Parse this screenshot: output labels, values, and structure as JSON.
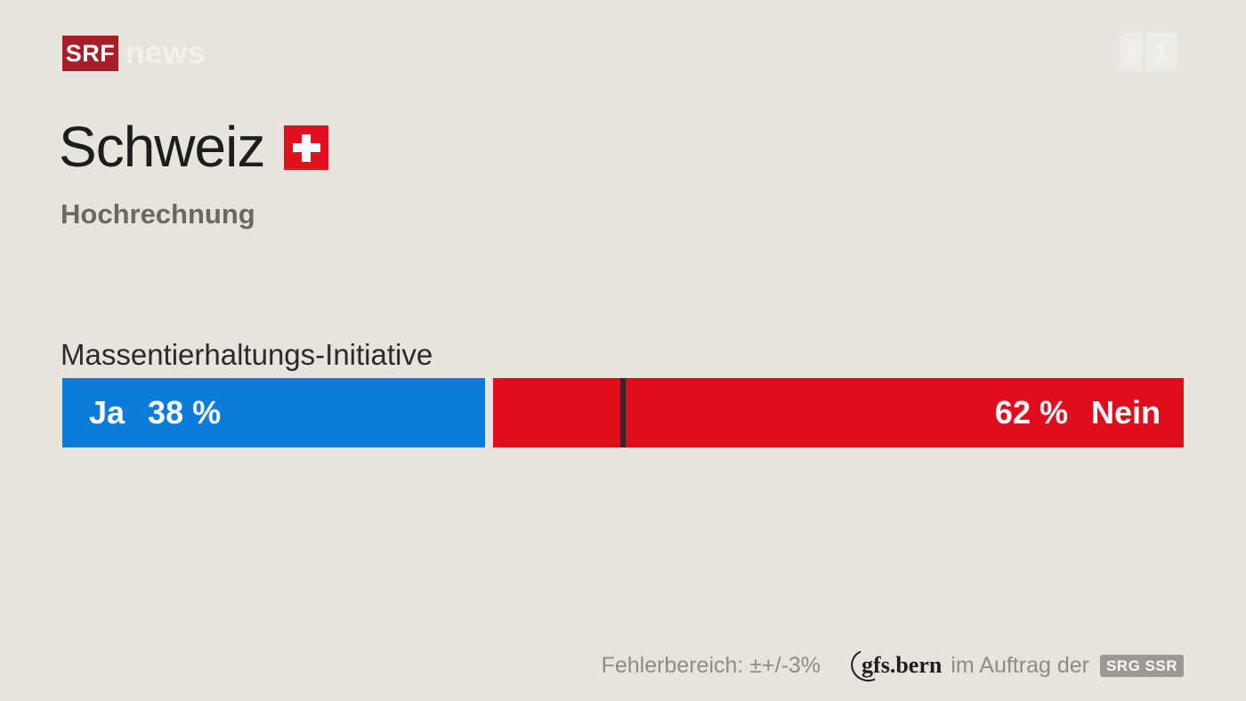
{
  "header": {
    "logo": {
      "srf": "SRF",
      "news": "news"
    },
    "watermark": {
      "box1": "SRF",
      "box2": "1"
    }
  },
  "title": {
    "region": "Schweiz",
    "subtitle": "Hochrechnung"
  },
  "chart_data": {
    "type": "bar",
    "orientation": "horizontal-stacked",
    "title": "Massentierhaltungs-Initiative",
    "categories": [
      "Massentierhaltungs-Initiative"
    ],
    "series": [
      {
        "name": "Ja",
        "value": 38,
        "value_label": "38 %",
        "color": "#0b7cd9"
      },
      {
        "name": "Nein",
        "value": 62,
        "value_label": "62 %",
        "color": "#e00d1d"
      }
    ],
    "unit": "%",
    "xlim": [
      0,
      100
    ],
    "majority_marker": 50,
    "marker_color": "#2f292b",
    "legend_position": "in-bar"
  },
  "footer": {
    "error_note": "Fehlerbereich: ±+/-3%",
    "gfs_logo": "gfs.bern",
    "commission_text": "im Auftrag der",
    "srg_badge": "SRG SSR"
  },
  "colors": {
    "background": "#e7e4de",
    "srf_logo_red": "#a81e28",
    "flag_red": "#e3101f",
    "title_text": "#1d1d1b",
    "subtitle_text": "#6b6762",
    "footer_text": "#8f8b85"
  }
}
